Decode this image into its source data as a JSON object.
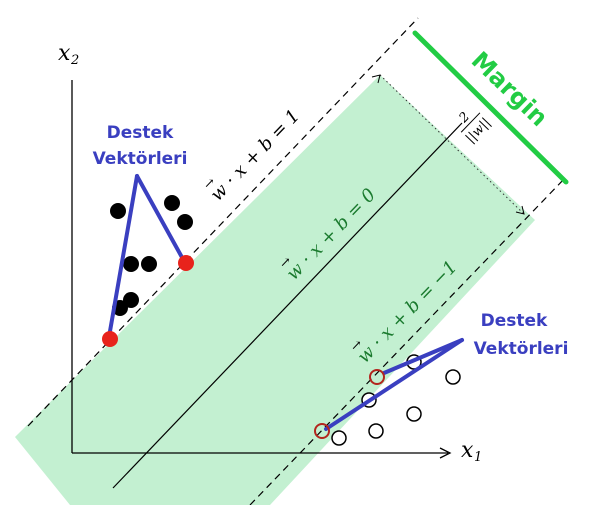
{
  "axes": {
    "x_label": "x",
    "x_sub": "1",
    "y_label": "x",
    "y_sub": "2"
  },
  "hyperplanes": {
    "positive": "w · x + b = 1",
    "center": "w · x + b = 0",
    "negative": "w · x + b = −1",
    "arrow_symbol": "→"
  },
  "margin": {
    "label": "Margin",
    "numerator": "2",
    "denominator": "||w||",
    "color": "#22cc44"
  },
  "annotations": {
    "left": {
      "line1": "Destek",
      "line2": "Vektörleri"
    },
    "right": {
      "line1": "Destek",
      "line2": "Vektörleri"
    },
    "color": "#3a3fc0"
  },
  "colors": {
    "margin_band": "#c3f0d1",
    "support_vector_fill": "#e8231c",
    "support_vector_ring": "#b3261e",
    "class_positive": "#000000",
    "class_negative_stroke": "#000000"
  },
  "points": {
    "class_positive_count": 8,
    "class_negative_count": 8,
    "support_vectors_positive": 2,
    "support_vectors_negative": 2
  }
}
